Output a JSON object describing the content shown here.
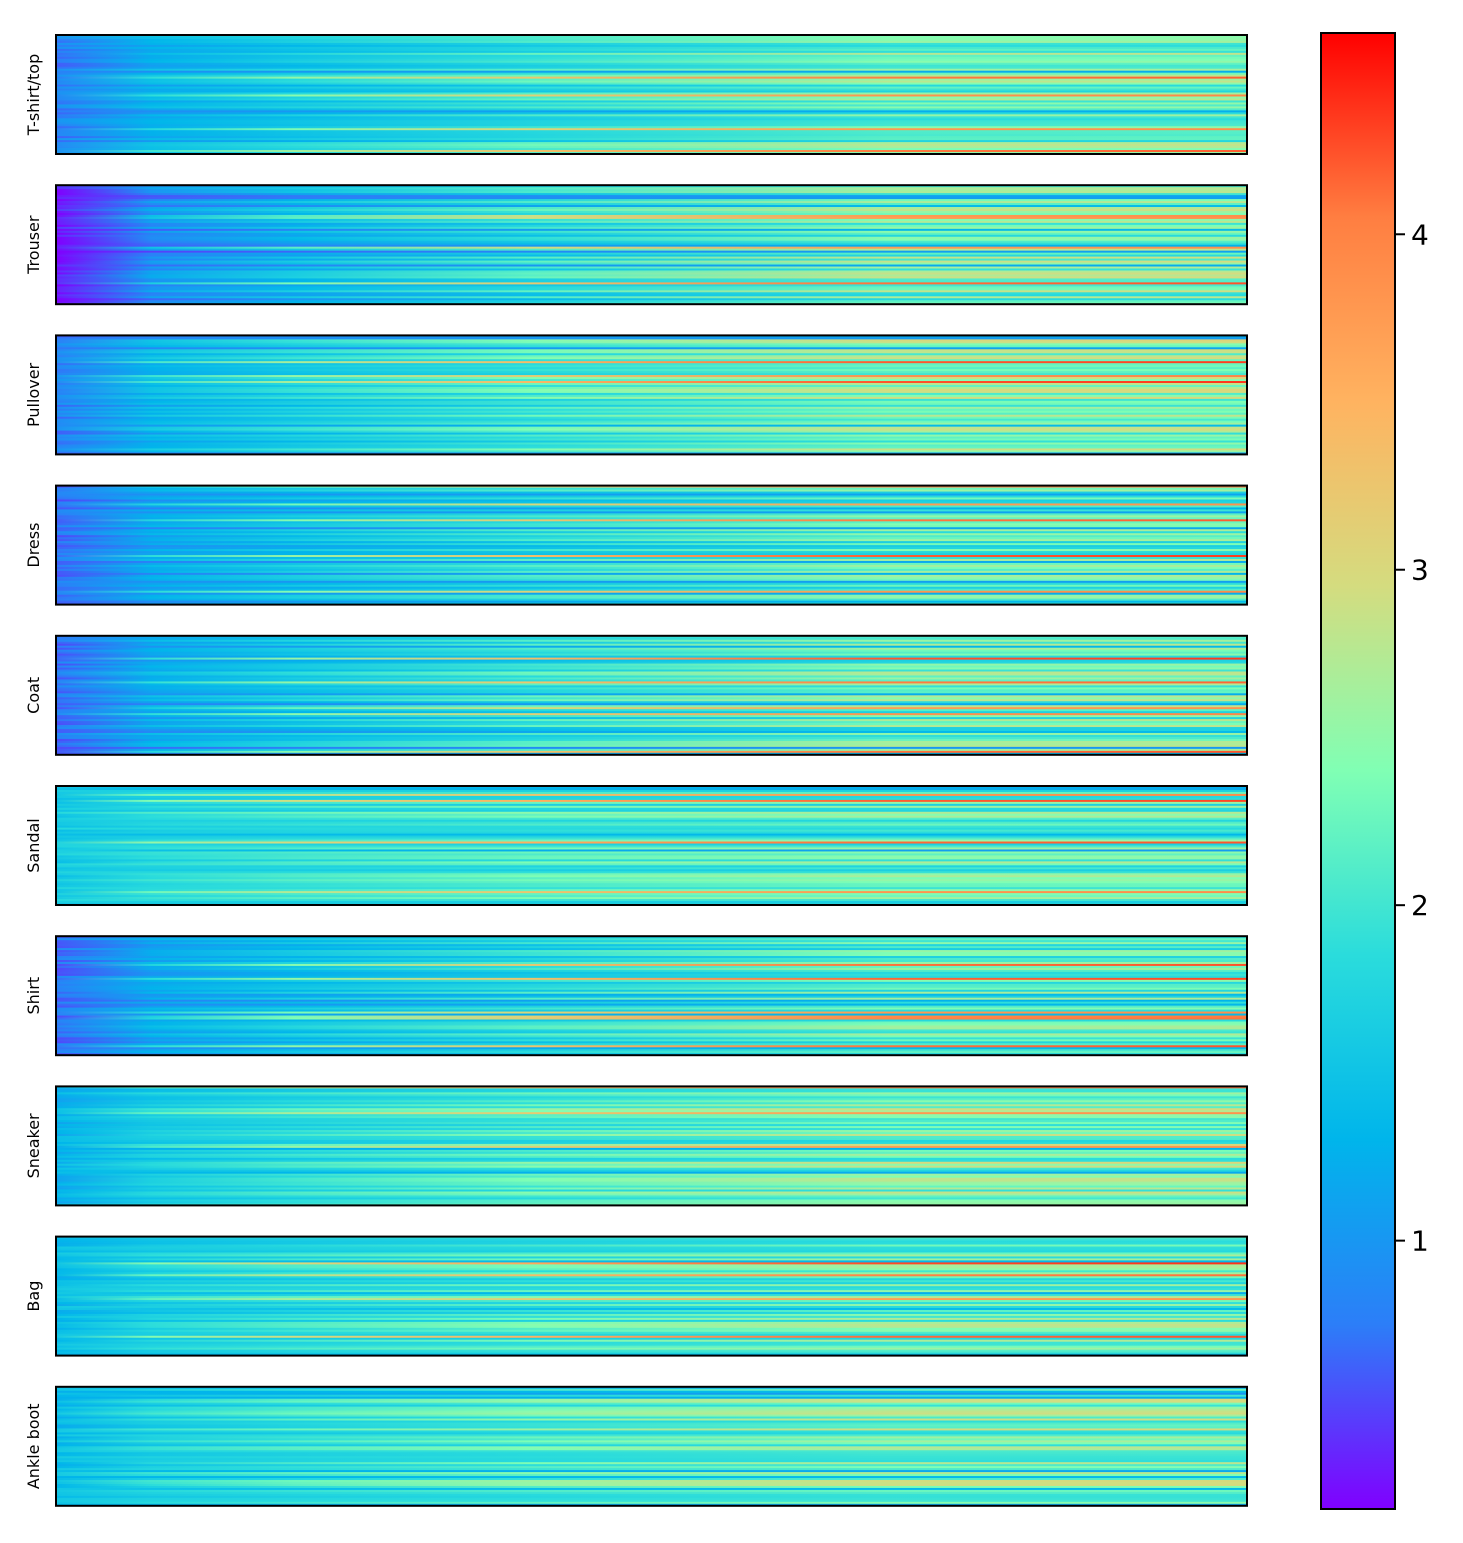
{
  "chart_data": {
    "type": "heatmap",
    "title": "",
    "xlabel": "",
    "ylabel": "",
    "colormap": "rainbow",
    "colormap_stops": [
      "#8000ff",
      "#2c7ef8",
      "#00b5eb",
      "#2adcdc",
      "#80ffb4",
      "#d4dc7f",
      "#ffb360",
      "#ff7e41",
      "#ff0000"
    ],
    "panels": [
      {
        "name": "T-shirt/top",
        "start": 0.8,
        "end": 2.3,
        "spread": 0.55
      },
      {
        "name": "Trouser",
        "start": 0.25,
        "end": 2.4,
        "spread": 0.6
      },
      {
        "name": "Pullover",
        "start": 0.8,
        "end": 2.5,
        "spread": 0.6
      },
      {
        "name": "Dress",
        "start": 0.7,
        "end": 2.2,
        "spread": 0.55
      },
      {
        "name": "Coat",
        "start": 0.7,
        "end": 2.3,
        "spread": 0.6
      },
      {
        "name": "Sandal",
        "start": 1.6,
        "end": 2.2,
        "spread": 0.55
      },
      {
        "name": "Shirt",
        "start": 0.7,
        "end": 2.2,
        "spread": 0.55
      },
      {
        "name": "Sneaker",
        "start": 1.3,
        "end": 2.4,
        "spread": 0.65
      },
      {
        "name": "Bag",
        "start": 1.4,
        "end": 2.3,
        "spread": 0.55
      },
      {
        "name": "Ankle boot",
        "start": 1.4,
        "end": 2.4,
        "spread": 0.6
      }
    ],
    "colorbar": {
      "min": 0.2,
      "max": 4.6,
      "ticks": [
        1,
        2,
        3,
        4
      ],
      "tick_labels": [
        "1",
        "2",
        "3",
        "4"
      ]
    }
  }
}
